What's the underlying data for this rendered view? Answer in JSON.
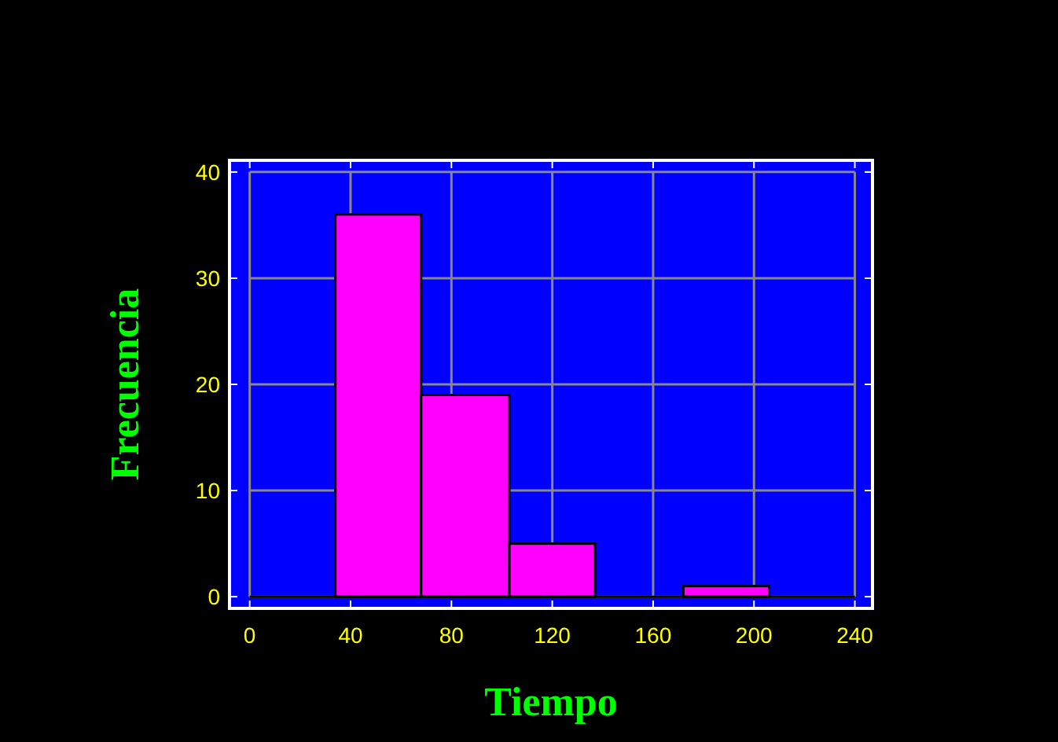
{
  "chart_data": {
    "type": "histogram",
    "xlabel": "Tiempo",
    "ylabel": "Frecuencia",
    "bins": [
      34,
      68,
      103,
      137,
      172,
      206
    ],
    "values": [
      36,
      19,
      5,
      0,
      1
    ],
    "color": "#ff00ff",
    "xlim": [
      -8,
      247
    ],
    "ylim": [
      -1.1,
      41.1
    ],
    "xticks": [
      0,
      40,
      80,
      120,
      160,
      200,
      240
    ],
    "yticks": [
      0,
      10,
      20,
      30,
      40
    ],
    "grid": true
  }
}
